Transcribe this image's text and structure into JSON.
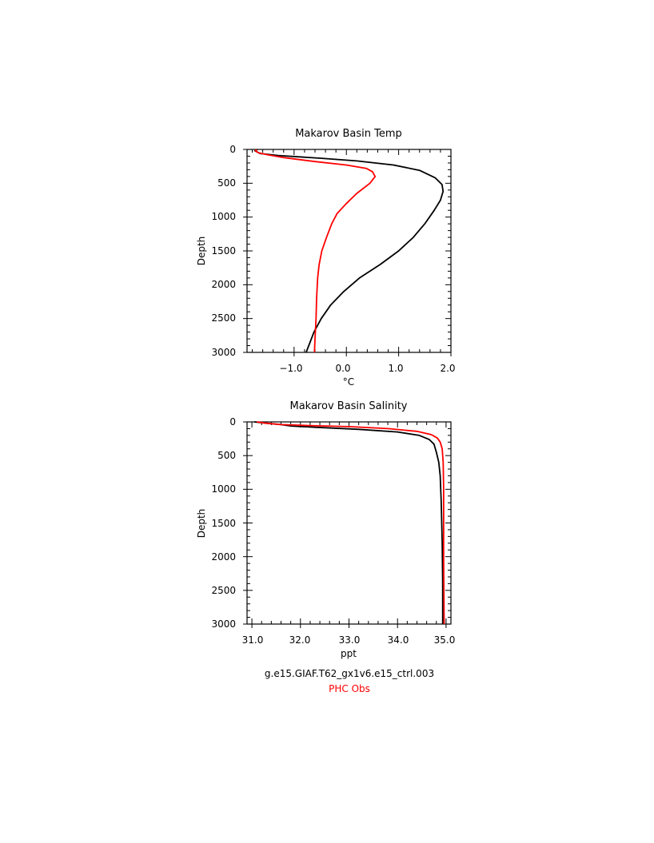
{
  "colors": {
    "model": "#000000",
    "obs": "#ff0000",
    "axis": "#000000",
    "background": "#ffffff"
  },
  "legend": {
    "model_label": "g.e15.GIAF.T62_gx1v6.e15_ctrl.003",
    "obs_label": "PHC Obs"
  },
  "chart_data": [
    {
      "type": "line",
      "title": "Makarov Basin Temp",
      "xlabel": "°C",
      "ylabel": "Depth",
      "xlim": [
        -1.9,
        2.0
      ],
      "ylim": [
        3000,
        0
      ],
      "y_reversed": true,
      "x_ticks": [
        "-1.0",
        "0.0",
        "1.0",
        "2.0"
      ],
      "y_ticks": [
        "0",
        "500",
        "1000",
        "1500",
        "2000",
        "2500",
        "3000"
      ],
      "grid": false,
      "series": [
        {
          "name": "g.e15.GIAF.T62_gx1v6.e15_ctrl.003",
          "color": "#000000",
          "points": [
            [
              -1.7,
              0
            ],
            [
              -1.75,
              20
            ],
            [
              -1.65,
              60
            ],
            [
              -1.3,
              90
            ],
            [
              -0.5,
              130
            ],
            [
              0.2,
              170
            ],
            [
              0.9,
              230
            ],
            [
              1.4,
              310
            ],
            [
              1.7,
              420
            ],
            [
              1.83,
              520
            ],
            [
              1.85,
              620
            ],
            [
              1.8,
              750
            ],
            [
              1.68,
              900
            ],
            [
              1.5,
              1100
            ],
            [
              1.28,
              1300
            ],
            [
              1.0,
              1500
            ],
            [
              0.65,
              1700
            ],
            [
              0.25,
              1900
            ],
            [
              -0.05,
              2100
            ],
            [
              -0.3,
              2300
            ],
            [
              -0.48,
              2500
            ],
            [
              -0.62,
              2700
            ],
            [
              -0.72,
              2900
            ],
            [
              -0.77,
              3000
            ]
          ]
        },
        {
          "name": "PHC Obs",
          "color": "#ff0000",
          "points": [
            [
              -1.72,
              0
            ],
            [
              -1.74,
              20
            ],
            [
              -1.68,
              50
            ],
            [
              -1.5,
              80
            ],
            [
              -1.2,
              120
            ],
            [
              -0.6,
              180
            ],
            [
              0.0,
              230
            ],
            [
              0.38,
              280
            ],
            [
              0.5,
              330
            ],
            [
              0.55,
              400
            ],
            [
              0.45,
              500
            ],
            [
              0.2,
              650
            ],
            [
              0.0,
              800
            ],
            [
              -0.18,
              950
            ],
            [
              -0.28,
              1100
            ],
            [
              -0.38,
              1300
            ],
            [
              -0.47,
              1500
            ],
            [
              -0.52,
              1700
            ],
            [
              -0.55,
              1900
            ],
            [
              -0.57,
              2200
            ],
            [
              -0.58,
              2500
            ],
            [
              -0.6,
              2800
            ],
            [
              -0.61,
              3000
            ]
          ]
        }
      ]
    },
    {
      "type": "line",
      "title": "Makarov Basin Salinity",
      "xlabel": "ppt",
      "ylabel": "Depth",
      "xlim": [
        30.9,
        35.1
      ],
      "ylim": [
        3000,
        0
      ],
      "y_reversed": true,
      "x_ticks": [
        "31.0",
        "32.0",
        "33.0",
        "34.0",
        "35.0"
      ],
      "y_ticks": [
        "0",
        "500",
        "1000",
        "1500",
        "2000",
        "2500",
        "3000"
      ],
      "grid": false,
      "series": [
        {
          "name": "g.e15.GIAF.T62_gx1v6.e15_ctrl.003",
          "color": "#000000",
          "points": [
            [
              31.05,
              0
            ],
            [
              31.3,
              20
            ],
            [
              31.6,
              40
            ],
            [
              31.8,
              60
            ],
            [
              32.3,
              80
            ],
            [
              33.2,
              110
            ],
            [
              34.0,
              150
            ],
            [
              34.45,
              200
            ],
            [
              34.65,
              260
            ],
            [
              34.75,
              330
            ],
            [
              34.8,
              450
            ],
            [
              34.85,
              600
            ],
            [
              34.88,
              800
            ],
            [
              34.9,
              1200
            ],
            [
              34.92,
              1800
            ],
            [
              34.93,
              2400
            ],
            [
              34.93,
              3000
            ]
          ]
        },
        {
          "name": "PHC Obs",
          "color": "#ff0000",
          "points": [
            [
              31.1,
              0
            ],
            [
              31.3,
              20
            ],
            [
              31.6,
              40
            ],
            [
              32.2,
              55
            ],
            [
              33.0,
              70
            ],
            [
              33.8,
              100
            ],
            [
              34.4,
              140
            ],
            [
              34.7,
              190
            ],
            [
              34.82,
              240
            ],
            [
              34.88,
              300
            ],
            [
              34.92,
              400
            ],
            [
              34.94,
              600
            ],
            [
              34.95,
              1000
            ],
            [
              34.95,
              2000
            ],
            [
              34.96,
              3000
            ]
          ]
        }
      ]
    }
  ]
}
